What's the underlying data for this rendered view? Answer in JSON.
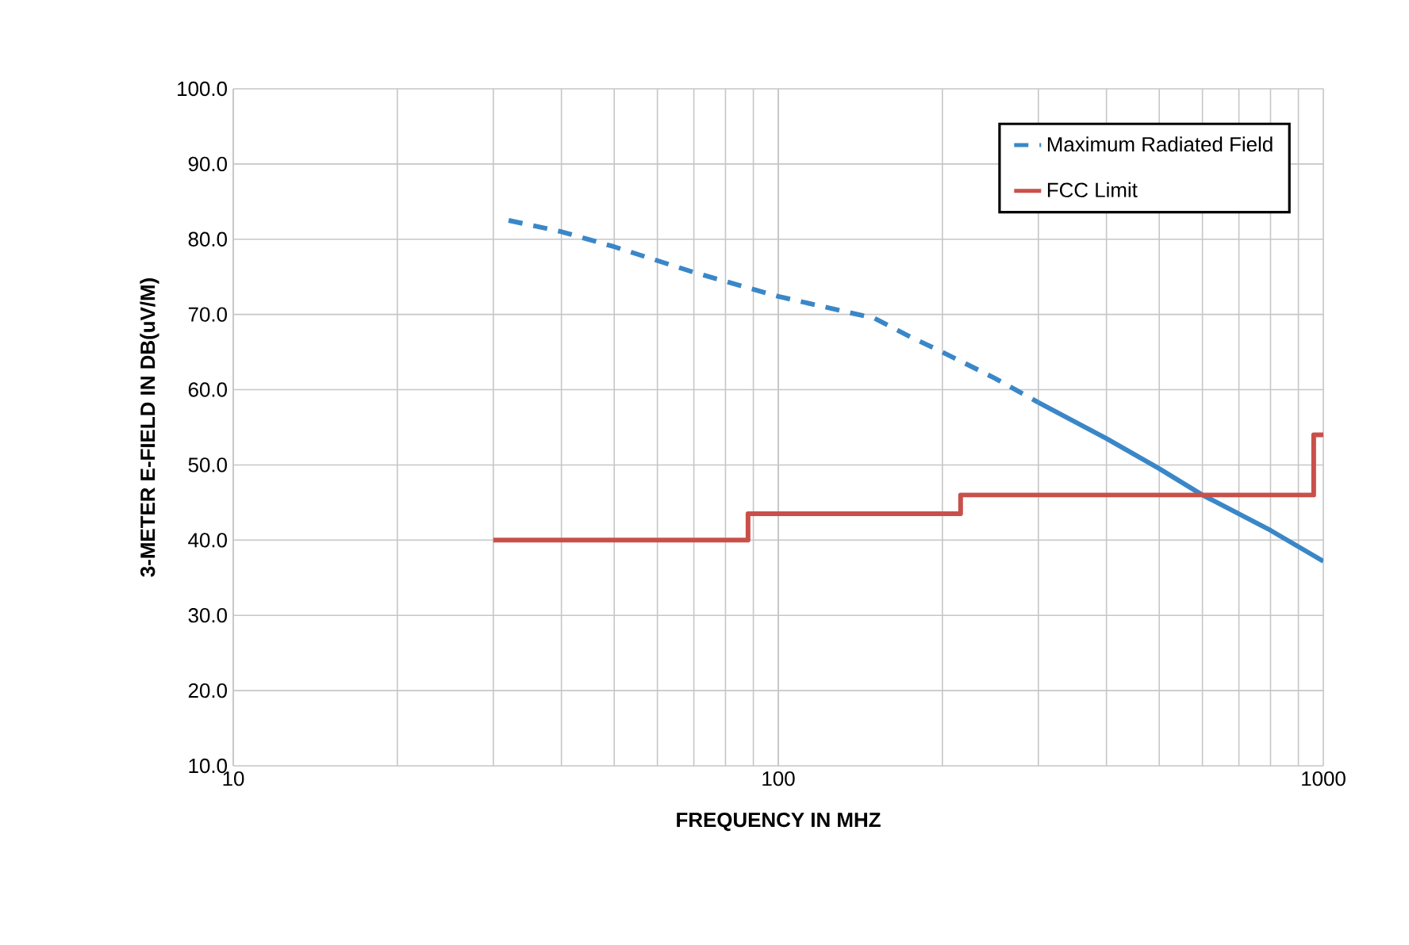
{
  "chart_data": {
    "type": "line",
    "xlabel": "FREQUENCY IN MHZ",
    "ylabel": "3-METER E-FIELD IN DB(uV/M)",
    "log": "x",
    "xlim": [
      10,
      1000
    ],
    "xticks": [
      10,
      100,
      1000
    ],
    "ylim": [
      10,
      100
    ],
    "yticks": [
      {
        "value": 10,
        "label": "10.0"
      },
      {
        "value": 20,
        "label": "20.0"
      },
      {
        "value": 30,
        "label": "30.0"
      },
      {
        "value": 40,
        "label": "40.0"
      },
      {
        "value": 50,
        "label": "50.0"
      },
      {
        "value": 60,
        "label": "60.0"
      },
      {
        "value": 70,
        "label": "70.0"
      },
      {
        "value": 80,
        "label": "80.0"
      },
      {
        "value": 90,
        "label": "90.0"
      },
      {
        "value": 100,
        "label": "100.0"
      }
    ],
    "grid": true,
    "legend": "top right",
    "series": [
      {
        "name": "Maximum Radiated Field",
        "color": "#3a87c8",
        "line_style": "dashed",
        "x": [
          32,
          40,
          50,
          70,
          100,
          150,
          175,
          200,
          250,
          300
        ],
        "values": [
          82.5,
          81,
          79,
          75.6,
          72.4,
          69.5,
          67,
          65,
          61.5,
          58.3
        ]
      },
      {
        "color": "#3a87c8",
        "line_style": "solid",
        "x": [
          300,
          400,
          500,
          600,
          800,
          1000
        ],
        "values": [
          58.3,
          53.5,
          49.5,
          46,
          41.3,
          37.2
        ]
      },
      {
        "name": "FCC Limit",
        "type": "step",
        "color": "#c9504a",
        "line_style": "solid",
        "x": [
          30,
          88,
          216,
          960,
          1000
        ],
        "values": [
          40,
          43.5,
          46,
          54,
          54
        ]
      }
    ]
  }
}
